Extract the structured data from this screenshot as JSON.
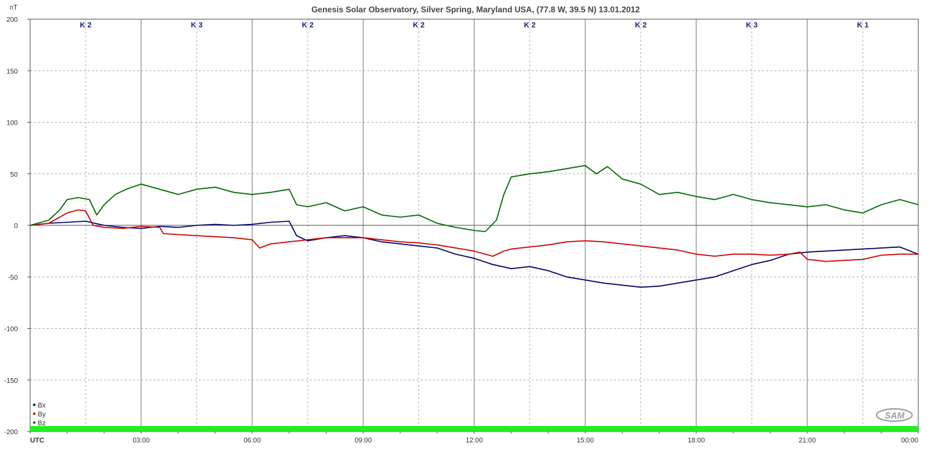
{
  "chart_data": {
    "type": "line",
    "title": "Genesis Solar Observatory, Silver Spring, Maryland USA, (77.8 W, 39.5 N)  13.01.2012",
    "ylabel": "nT",
    "xlabel": "UTC",
    "ylim": [
      -200,
      200
    ],
    "yticks": [
      200,
      150,
      100,
      50,
      0,
      -50,
      -100,
      -150,
      -200
    ],
    "xlim_hours": [
      0,
      24
    ],
    "xtick_labels": [
      "UTC",
      "03:00",
      "06:00",
      "09:00",
      "12:00",
      "15:00",
      "18:00",
      "21:00",
      "00:00"
    ],
    "grid": true,
    "legend_position": "bottom-left",
    "k_indices": [
      "K 2",
      "K 3",
      "K 2",
      "K 2",
      "K 2",
      "K 2",
      "K 3",
      "K 1"
    ],
    "series": [
      {
        "name": "Bx",
        "color": "#000066",
        "points": [
          [
            0,
            0
          ],
          [
            0.5,
            2
          ],
          [
            1,
            3
          ],
          [
            1.5,
            4
          ],
          [
            2,
            0
          ],
          [
            2.5,
            -2
          ],
          [
            3,
            -3
          ],
          [
            3.5,
            -1
          ],
          [
            4,
            -2
          ],
          [
            4.5,
            0
          ],
          [
            5,
            1
          ],
          [
            5.5,
            0
          ],
          [
            6,
            1
          ],
          [
            6.5,
            3
          ],
          [
            7,
            4
          ],
          [
            7.2,
            -10
          ],
          [
            7.5,
            -15
          ],
          [
            8,
            -12
          ],
          [
            8.5,
            -10
          ],
          [
            9,
            -12
          ],
          [
            9.5,
            -16
          ],
          [
            10,
            -18
          ],
          [
            10.5,
            -20
          ],
          [
            11,
            -22
          ],
          [
            11.5,
            -28
          ],
          [
            12,
            -32
          ],
          [
            12.5,
            -38
          ],
          [
            13,
            -42
          ],
          [
            13.5,
            -40
          ],
          [
            14,
            -44
          ],
          [
            14.5,
            -50
          ],
          [
            15,
            -53
          ],
          [
            15.5,
            -56
          ],
          [
            16,
            -58
          ],
          [
            16.5,
            -60
          ],
          [
            17,
            -59
          ],
          [
            17.5,
            -56
          ],
          [
            18,
            -53
          ],
          [
            18.5,
            -50
          ],
          [
            19,
            -44
          ],
          [
            19.5,
            -38
          ],
          [
            20,
            -34
          ],
          [
            20.5,
            -28
          ],
          [
            21,
            -26
          ],
          [
            21.5,
            -25
          ],
          [
            22,
            -24
          ],
          [
            22.5,
            -23
          ],
          [
            23,
            -22
          ],
          [
            23.5,
            -21
          ],
          [
            24,
            -28
          ]
        ]
      },
      {
        "name": "By",
        "color": "#cc0000",
        "points": [
          [
            0,
            0
          ],
          [
            0.5,
            2
          ],
          [
            1,
            12
          ],
          [
            1.3,
            15
          ],
          [
            1.5,
            14
          ],
          [
            1.7,
            0
          ],
          [
            2,
            -2
          ],
          [
            2.5,
            -3
          ],
          [
            3,
            -1
          ],
          [
            3.5,
            -2
          ],
          [
            3.6,
            -8
          ],
          [
            4,
            -9
          ],
          [
            4.5,
            -10
          ],
          [
            5,
            -11
          ],
          [
            5.5,
            -12
          ],
          [
            6,
            -14
          ],
          [
            6.2,
            -22
          ],
          [
            6.5,
            -18
          ],
          [
            7,
            -16
          ],
          [
            7.5,
            -14
          ],
          [
            8,
            -12
          ],
          [
            8.5,
            -12
          ],
          [
            9,
            -12
          ],
          [
            9.5,
            -14
          ],
          [
            10,
            -16
          ],
          [
            10.5,
            -17
          ],
          [
            11,
            -19
          ],
          [
            11.5,
            -22
          ],
          [
            12,
            -25
          ],
          [
            12.5,
            -30
          ],
          [
            12.8,
            -25
          ],
          [
            13,
            -23
          ],
          [
            13.5,
            -21
          ],
          [
            14,
            -19
          ],
          [
            14.5,
            -16
          ],
          [
            15,
            -15
          ],
          [
            15.5,
            -16
          ],
          [
            16,
            -18
          ],
          [
            16.5,
            -20
          ],
          [
            17,
            -22
          ],
          [
            17.5,
            -24
          ],
          [
            18,
            -28
          ],
          [
            18.5,
            -30
          ],
          [
            19,
            -28
          ],
          [
            19.5,
            -28
          ],
          [
            20,
            -29
          ],
          [
            20.5,
            -28
          ],
          [
            20.8,
            -26
          ],
          [
            21,
            -33
          ],
          [
            21.5,
            -35
          ],
          [
            22,
            -34
          ],
          [
            22.5,
            -33
          ],
          [
            23,
            -29
          ],
          [
            23.5,
            -28
          ],
          [
            24,
            -28
          ]
        ]
      },
      {
        "name": "Bz",
        "color": "#006600",
        "points": [
          [
            0,
            0
          ],
          [
            0.5,
            5
          ],
          [
            0.8,
            15
          ],
          [
            1,
            25
          ],
          [
            1.3,
            27
          ],
          [
            1.6,
            25
          ],
          [
            1.8,
            10
          ],
          [
            2,
            20
          ],
          [
            2.3,
            30
          ],
          [
            2.6,
            35
          ],
          [
            3,
            40
          ],
          [
            3.5,
            35
          ],
          [
            4,
            30
          ],
          [
            4.5,
            35
          ],
          [
            5,
            37
          ],
          [
            5.5,
            32
          ],
          [
            6,
            30
          ],
          [
            6.5,
            32
          ],
          [
            7,
            35
          ],
          [
            7.2,
            20
          ],
          [
            7.5,
            18
          ],
          [
            8,
            22
          ],
          [
            8.5,
            14
          ],
          [
            9,
            18
          ],
          [
            9.5,
            10
          ],
          [
            10,
            8
          ],
          [
            10.5,
            10
          ],
          [
            11,
            2
          ],
          [
            11.5,
            -2
          ],
          [
            12,
            -5
          ],
          [
            12.3,
            -6
          ],
          [
            12.6,
            5
          ],
          [
            12.8,
            30
          ],
          [
            13,
            47
          ],
          [
            13.5,
            50
          ],
          [
            14,
            52
          ],
          [
            14.5,
            55
          ],
          [
            15,
            58
          ],
          [
            15.3,
            50
          ],
          [
            15.6,
            57
          ],
          [
            16,
            45
          ],
          [
            16.5,
            40
          ],
          [
            17,
            30
          ],
          [
            17.5,
            32
          ],
          [
            18,
            28
          ],
          [
            18.5,
            25
          ],
          [
            19,
            30
          ],
          [
            19.5,
            25
          ],
          [
            20,
            22
          ],
          [
            20.5,
            20
          ],
          [
            21,
            18
          ],
          [
            21.5,
            20
          ],
          [
            22,
            15
          ],
          [
            22.5,
            12
          ],
          [
            23,
            20
          ],
          [
            23.5,
            25
          ],
          [
            24,
            20
          ]
        ]
      }
    ]
  },
  "watermark_text": "SAM"
}
